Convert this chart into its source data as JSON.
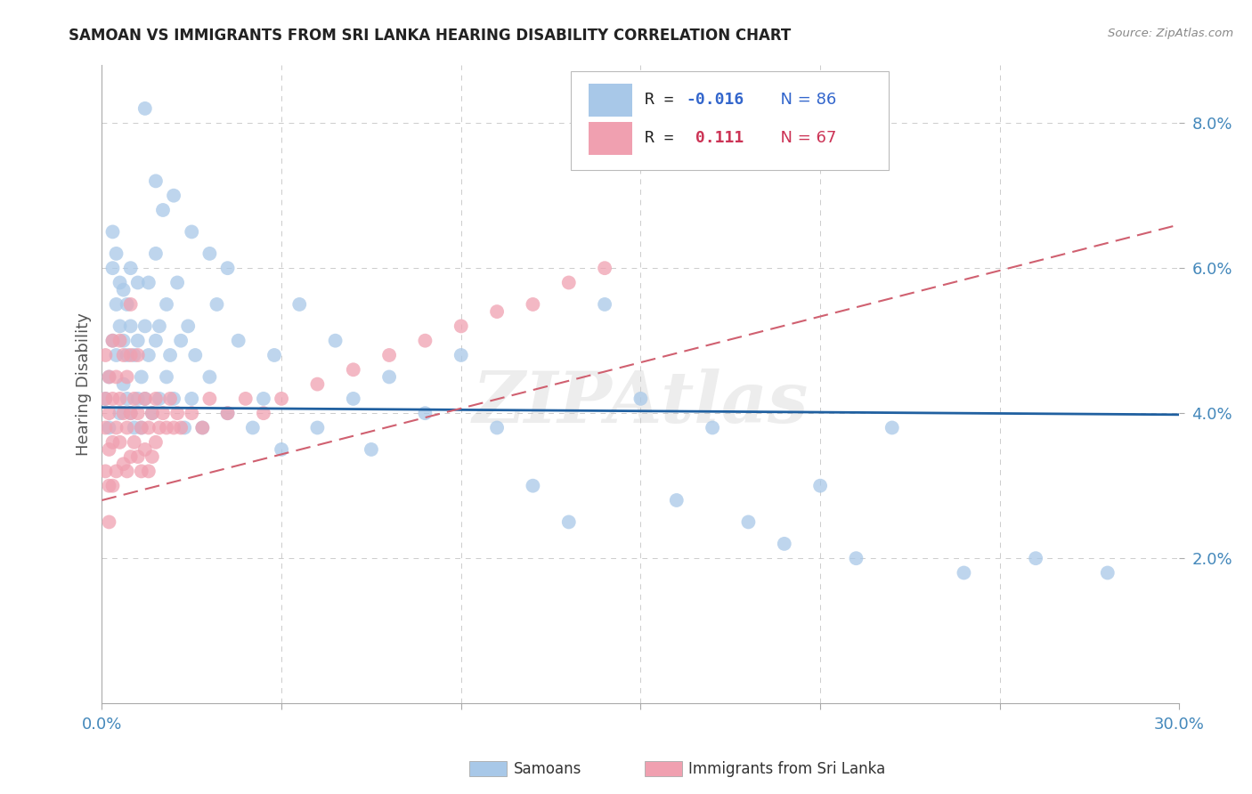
{
  "title": "SAMOAN VS IMMIGRANTS FROM SRI LANKA HEARING DISABILITY CORRELATION CHART",
  "source": "Source: ZipAtlas.com",
  "ylabel": "Hearing Disability",
  "xlim": [
    0.0,
    0.3
  ],
  "ylim": [
    0.0,
    0.088
  ],
  "r_samoan": -0.016,
  "n_samoan": 86,
  "r_srilanka": 0.111,
  "n_srilanka": 67,
  "color_blue": "#A8C8E8",
  "color_blue_line": "#2060A0",
  "color_pink": "#F0A0B0",
  "color_pink_line": "#D06070",
  "background": "#FFFFFF",
  "grid_color": "#CCCCCC",
  "watermark_text": "ZIPAtlas",
  "title_fontsize": 12,
  "tick_fontsize": 13,
  "ylabel_fontsize": 13,
  "blue_line_y0": 0.0408,
  "blue_line_y1": 0.0398,
  "pink_line_y0": 0.028,
  "pink_line_y1": 0.066,
  "samoans_x": [
    0.001,
    0.002,
    0.002,
    0.003,
    0.003,
    0.003,
    0.004,
    0.004,
    0.004,
    0.005,
    0.005,
    0.005,
    0.006,
    0.006,
    0.006,
    0.007,
    0.007,
    0.007,
    0.008,
    0.008,
    0.008,
    0.009,
    0.009,
    0.01,
    0.01,
    0.01,
    0.011,
    0.011,
    0.012,
    0.012,
    0.013,
    0.013,
    0.014,
    0.015,
    0.015,
    0.016,
    0.016,
    0.017,
    0.018,
    0.018,
    0.019,
    0.02,
    0.021,
    0.022,
    0.023,
    0.024,
    0.025,
    0.026,
    0.028,
    0.03,
    0.032,
    0.035,
    0.038,
    0.042,
    0.045,
    0.048,
    0.05,
    0.055,
    0.06,
    0.065,
    0.07,
    0.075,
    0.08,
    0.09,
    0.1,
    0.11,
    0.12,
    0.13,
    0.14,
    0.15,
    0.16,
    0.17,
    0.18,
    0.19,
    0.2,
    0.21,
    0.22,
    0.24,
    0.26,
    0.28,
    0.012,
    0.015,
    0.02,
    0.025,
    0.03,
    0.035
  ],
  "samoans_y": [
    0.042,
    0.038,
    0.045,
    0.05,
    0.06,
    0.065,
    0.048,
    0.055,
    0.062,
    0.04,
    0.052,
    0.058,
    0.044,
    0.05,
    0.057,
    0.042,
    0.048,
    0.055,
    0.04,
    0.052,
    0.06,
    0.038,
    0.048,
    0.042,
    0.05,
    0.058,
    0.038,
    0.045,
    0.052,
    0.042,
    0.048,
    0.058,
    0.04,
    0.05,
    0.062,
    0.042,
    0.052,
    0.068,
    0.045,
    0.055,
    0.048,
    0.042,
    0.058,
    0.05,
    0.038,
    0.052,
    0.042,
    0.048,
    0.038,
    0.045,
    0.055,
    0.04,
    0.05,
    0.038,
    0.042,
    0.048,
    0.035,
    0.055,
    0.038,
    0.05,
    0.042,
    0.035,
    0.045,
    0.04,
    0.048,
    0.038,
    0.03,
    0.025,
    0.055,
    0.042,
    0.028,
    0.038,
    0.025,
    0.022,
    0.03,
    0.02,
    0.038,
    0.018,
    0.02,
    0.018,
    0.082,
    0.072,
    0.07,
    0.065,
    0.062,
    0.06
  ],
  "srilanka_x": [
    0.001,
    0.001,
    0.001,
    0.001,
    0.002,
    0.002,
    0.002,
    0.002,
    0.002,
    0.003,
    0.003,
    0.003,
    0.003,
    0.004,
    0.004,
    0.004,
    0.005,
    0.005,
    0.005,
    0.006,
    0.006,
    0.006,
    0.007,
    0.007,
    0.007,
    0.008,
    0.008,
    0.008,
    0.009,
    0.009,
    0.01,
    0.01,
    0.01,
    0.011,
    0.011,
    0.012,
    0.012,
    0.013,
    0.013,
    0.014,
    0.014,
    0.015,
    0.015,
    0.016,
    0.017,
    0.018,
    0.019,
    0.02,
    0.021,
    0.022,
    0.025,
    0.028,
    0.03,
    0.035,
    0.04,
    0.045,
    0.05,
    0.06,
    0.07,
    0.08,
    0.09,
    0.1,
    0.11,
    0.12,
    0.13,
    0.14,
    0.008
  ],
  "srilanka_y": [
    0.048,
    0.042,
    0.038,
    0.032,
    0.045,
    0.04,
    0.035,
    0.03,
    0.025,
    0.05,
    0.042,
    0.036,
    0.03,
    0.045,
    0.038,
    0.032,
    0.05,
    0.042,
    0.036,
    0.048,
    0.04,
    0.033,
    0.045,
    0.038,
    0.032,
    0.048,
    0.04,
    0.034,
    0.042,
    0.036,
    0.048,
    0.04,
    0.034,
    0.038,
    0.032,
    0.042,
    0.035,
    0.038,
    0.032,
    0.04,
    0.034,
    0.042,
    0.036,
    0.038,
    0.04,
    0.038,
    0.042,
    0.038,
    0.04,
    0.038,
    0.04,
    0.038,
    0.042,
    0.04,
    0.042,
    0.04,
    0.042,
    0.044,
    0.046,
    0.048,
    0.05,
    0.052,
    0.054,
    0.055,
    0.058,
    0.06,
    0.055
  ]
}
